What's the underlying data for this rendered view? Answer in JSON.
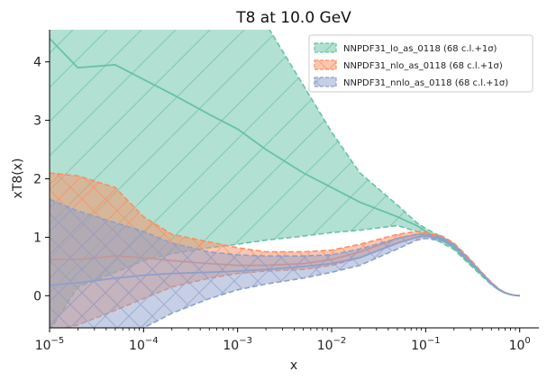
{
  "chart_data": {
    "type": "line",
    "title": "T8 at 10.0 GeV",
    "xlabel": "x",
    "ylabel": "xT8(x)",
    "xscale": "log",
    "xlim": [
      1e-05,
      1.6
    ],
    "ylim": [
      -0.55,
      4.55
    ],
    "x_ticks": [
      {
        "value": 1e-05,
        "label": "10",
        "exp": "−5"
      },
      {
        "value": 0.0001,
        "label": "10",
        "exp": "−4"
      },
      {
        "value": 0.001,
        "label": "10",
        "exp": "−3"
      },
      {
        "value": 0.01,
        "label": "10",
        "exp": "−2"
      },
      {
        "value": 0.1,
        "label": "10",
        "exp": "−1"
      },
      {
        "value": 1,
        "label": "10",
        "exp": "0"
      }
    ],
    "y_ticks": [
      0,
      1,
      2,
      3,
      4
    ],
    "legend": {
      "position": "top-right"
    },
    "x": [
      1e-05,
      2e-05,
      5e-05,
      0.0001,
      0.0002,
      0.0005,
      0.001,
      0.002,
      0.005,
      0.01,
      0.02,
      0.05,
      0.08,
      0.1,
      0.15,
      0.2,
      0.3,
      0.4,
      0.5,
      0.6,
      0.7,
      0.8,
      0.9,
      1.0
    ],
    "series": [
      {
        "name": "NNPDF31_lo_as_0118 (68 c.l.+1σ)",
        "color": "#66c2a5",
        "hatch": "diagonal",
        "central": [
          4.4,
          3.9,
          3.95,
          3.7,
          3.45,
          3.1,
          2.85,
          2.5,
          2.1,
          1.85,
          1.6,
          1.35,
          1.2,
          1.1,
          0.95,
          0.82,
          0.55,
          0.35,
          0.2,
          0.1,
          0.05,
          0.02,
          0.005,
          0.0
        ],
        "upper": [
          5.5,
          5.5,
          5.5,
          5.5,
          5.5,
          5.5,
          5.3,
          4.65,
          3.6,
          2.8,
          2.1,
          1.55,
          1.25,
          1.15,
          1.0,
          0.85,
          0.58,
          0.37,
          0.21,
          0.11,
          0.055,
          0.022,
          0.006,
          0.0
        ],
        "lower": [
          -0.6,
          0.15,
          0.4,
          0.6,
          0.72,
          0.82,
          0.88,
          0.95,
          1.02,
          1.08,
          1.12,
          1.2,
          1.1,
          1.05,
          0.9,
          0.79,
          0.52,
          0.33,
          0.19,
          0.095,
          0.045,
          0.018,
          0.004,
          0.0
        ]
      },
      {
        "name": "NNPDF31_nlo_as_0118 (68 c.l.+1σ)",
        "color": "#fc8d62",
        "hatch": "crosshatch",
        "central": [
          0.62,
          0.62,
          0.68,
          0.65,
          0.6,
          0.55,
          0.52,
          0.52,
          0.55,
          0.62,
          0.75,
          0.98,
          1.05,
          1.05,
          1.0,
          0.88,
          0.6,
          0.38,
          0.22,
          0.11,
          0.05,
          0.02,
          0.005,
          0.0
        ],
        "upper": [
          2.1,
          2.05,
          1.85,
          1.35,
          1.05,
          0.92,
          0.82,
          0.75,
          0.75,
          0.78,
          0.88,
          1.05,
          1.1,
          1.08,
          1.02,
          0.9,
          0.62,
          0.39,
          0.23,
          0.115,
          0.052,
          0.021,
          0.005,
          0.0
        ],
        "lower": [
          -0.6,
          -0.5,
          -0.25,
          -0.05,
          0.15,
          0.3,
          0.38,
          0.42,
          0.45,
          0.52,
          0.65,
          0.9,
          1.0,
          1.02,
          0.97,
          0.86,
          0.58,
          0.37,
          0.21,
          0.105,
          0.048,
          0.019,
          0.004,
          0.0
        ]
      },
      {
        "name": "NNPDF31_nnlo_as_0118 (68 c.l.+1σ)",
        "color": "#8da0cb",
        "hatch": "crosshatch",
        "central": [
          0.18,
          0.22,
          0.3,
          0.35,
          0.38,
          0.4,
          0.42,
          0.45,
          0.5,
          0.55,
          0.65,
          0.9,
          1.0,
          1.02,
          0.97,
          0.86,
          0.58,
          0.37,
          0.21,
          0.105,
          0.048,
          0.019,
          0.004,
          0.0
        ],
        "upper": [
          1.65,
          1.45,
          1.25,
          1.1,
          0.9,
          0.75,
          0.7,
          0.68,
          0.68,
          0.7,
          0.8,
          0.98,
          1.05,
          1.05,
          1.0,
          0.88,
          0.6,
          0.38,
          0.22,
          0.11,
          0.05,
          0.02,
          0.005,
          0.0
        ],
        "lower": [
          -0.6,
          -0.6,
          -0.6,
          -0.55,
          -0.3,
          -0.05,
          0.1,
          0.2,
          0.3,
          0.4,
          0.52,
          0.8,
          0.95,
          0.98,
          0.94,
          0.83,
          0.56,
          0.36,
          0.2,
          0.1,
          0.046,
          0.018,
          0.004,
          0.0
        ]
      }
    ]
  }
}
